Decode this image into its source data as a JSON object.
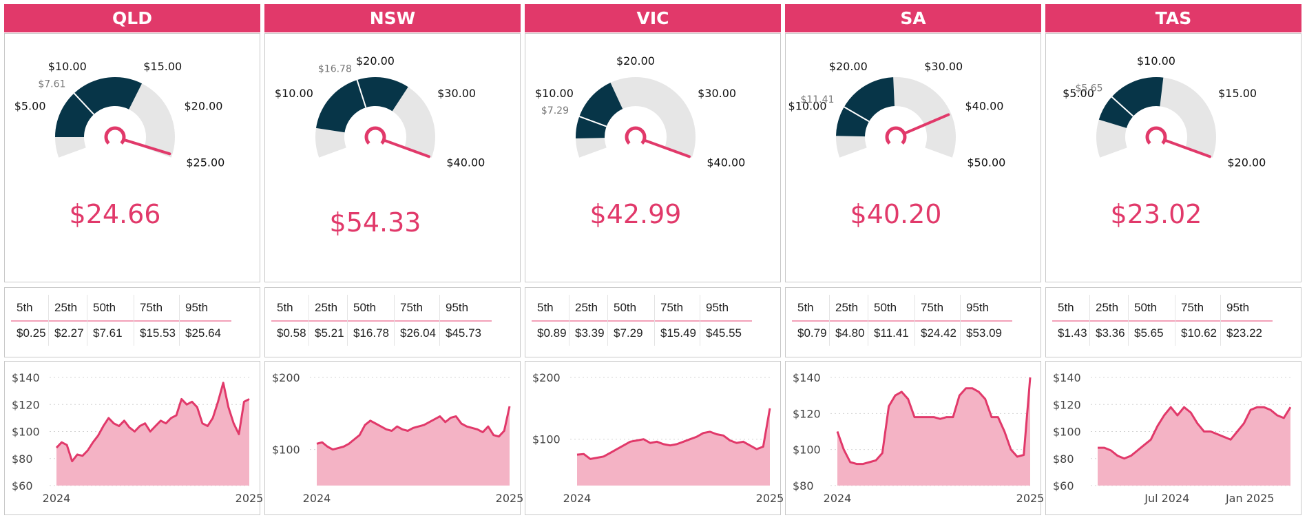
{
  "colors": {
    "accent": "#e1396a",
    "dark": "#073548",
    "track": "#e6e6e6",
    "fill": "#f4b3c5",
    "header_text": "#ffffff"
  },
  "percentile_headers": [
    "5th",
    "25th",
    "50th",
    "75th",
    "95th"
  ],
  "regions": [
    {
      "name": "QLD",
      "value": "$24.66",
      "gauge": {
        "min": 0,
        "max": 25,
        "current": 24.66,
        "median": 7.61,
        "median_label": "$7.61",
        "p25": 2.27,
        "p75": 15.53,
        "ticks": [
          {
            "v": 5,
            "label": "$5.00"
          },
          {
            "v": 10,
            "label": "$10.00"
          },
          {
            "v": 15,
            "label": "$15.00"
          },
          {
            "v": 20,
            "label": "$20.00"
          },
          {
            "v": 25,
            "label": "$25.00"
          }
        ]
      },
      "percentiles": [
        "$0.25",
        "$2.27",
        "$7.61",
        "$15.53",
        "$25.64"
      ],
      "chart_data": {
        "type": "area",
        "title": "QLD",
        "ylim": [
          60,
          140
        ],
        "yticks": [
          "$140",
          "$120",
          "$100",
          "$80",
          "$60"
        ],
        "ytick_values": [
          140,
          120,
          100,
          80,
          60
        ],
        "xticks": [
          "2024",
          "2025"
        ],
        "xtick_pos": [
          0,
          1
        ],
        "values": [
          88,
          92,
          90,
          78,
          83,
          82,
          86,
          92,
          97,
          104,
          110,
          106,
          104,
          108,
          103,
          100,
          104,
          106,
          100,
          104,
          108,
          106,
          110,
          112,
          124,
          120,
          122,
          118,
          106,
          104,
          110,
          122,
          136,
          118,
          106,
          98,
          122,
          124
        ]
      }
    },
    {
      "name": "NSW",
      "value": "$54.33",
      "gauge": {
        "min": 0,
        "max": 40,
        "current": 54.33,
        "median": 16.78,
        "median_label": "$16.78",
        "p25": 5.21,
        "p75": 26.04,
        "ticks": [
          {
            "v": 10,
            "label": "$10.00"
          },
          {
            "v": 20,
            "label": "$20.00"
          },
          {
            "v": 30,
            "label": "$30.00"
          },
          {
            "v": 40,
            "label": "$40.00"
          }
        ]
      },
      "percentiles": [
        "$0.58",
        "$5.21",
        "$16.78",
        "$26.04",
        "$45.73"
      ],
      "chart_data": {
        "type": "area",
        "title": "NSW",
        "ylim": [
          50,
          200
        ],
        "yticks": [
          "$200",
          "$100"
        ],
        "ytick_values": [
          200,
          100
        ],
        "xticks": [
          "2024",
          "2025"
        ],
        "xtick_pos": [
          0,
          1
        ],
        "values": [
          108,
          110,
          104,
          100,
          102,
          104,
          108,
          114,
          120,
          134,
          140,
          136,
          132,
          128,
          126,
          132,
          128,
          126,
          130,
          132,
          134,
          138,
          142,
          146,
          138,
          144,
          146,
          136,
          132,
          130,
          128,
          124,
          132,
          120,
          118,
          126,
          160
        ]
      }
    },
    {
      "name": "VIC",
      "value": "$42.99",
      "gauge": {
        "min": 0,
        "max": 40,
        "current": 42.99,
        "median": 7.29,
        "median_label": "$7.29",
        "p25": 3.39,
        "p75": 15.49,
        "ticks": [
          {
            "v": 10,
            "label": "$10.00"
          },
          {
            "v": 20,
            "label": "$20.00"
          },
          {
            "v": 30,
            "label": "$30.00"
          },
          {
            "v": 40,
            "label": "$40.00"
          }
        ]
      },
      "percentiles": [
        "$0.89",
        "$3.39",
        "$7.29",
        "$15.49",
        "$45.55"
      ],
      "chart_data": {
        "type": "area",
        "title": "VIC",
        "ylim": [
          25,
          200
        ],
        "yticks": [
          "$200",
          "$100"
        ],
        "ytick_values": [
          200,
          100
        ],
        "xticks": [
          "2024",
          "2025"
        ],
        "xtick_pos": [
          0,
          1
        ],
        "values": [
          75,
          76,
          68,
          70,
          72,
          78,
          84,
          90,
          96,
          98,
          100,
          94,
          96,
          92,
          90,
          92,
          96,
          100,
          104,
          110,
          112,
          108,
          106,
          98,
          94,
          96,
          90,
          84,
          88,
          150
        ]
      }
    },
    {
      "name": "SA",
      "value": "$40.20",
      "gauge": {
        "min": 0,
        "max": 50,
        "current": 40.2,
        "median": 11.41,
        "median_label": "$11.41",
        "p25": 4.8,
        "p75": 24.42,
        "ticks": [
          {
            "v": 10,
            "label": "$10.00"
          },
          {
            "v": 20,
            "label": "$20.00"
          },
          {
            "v": 30,
            "label": "$30.00"
          },
          {
            "v": 40,
            "label": "$40.00"
          },
          {
            "v": 50,
            "label": "$50.00"
          }
        ]
      },
      "percentiles": [
        "$0.79",
        "$4.80",
        "$11.41",
        "$24.42",
        "$53.09"
      ],
      "chart_data": {
        "type": "area",
        "title": "SA",
        "ylim": [
          80,
          140
        ],
        "yticks": [
          "$140",
          "$120",
          "$100",
          "$80"
        ],
        "ytick_values": [
          140,
          120,
          100,
          80
        ],
        "xticks": [
          "2024",
          "2025"
        ],
        "xtick_pos": [
          0,
          1
        ],
        "values": [
          110,
          100,
          93,
          92,
          92,
          93,
          94,
          98,
          124,
          130,
          132,
          128,
          118,
          118,
          118,
          118,
          117,
          118,
          118,
          130,
          134,
          134,
          132,
          128,
          118,
          118,
          110,
          100,
          96,
          97,
          140
        ]
      }
    },
    {
      "name": "TAS",
      "value": "$23.02",
      "gauge": {
        "min": 0,
        "max": 20,
        "current": 23.02,
        "median": 5.65,
        "median_label": "$5.65",
        "p25": 3.36,
        "p75": 10.62,
        "ticks": [
          {
            "v": 5,
            "label": "$5.00"
          },
          {
            "v": 10,
            "label": "$10.00"
          },
          {
            "v": 15,
            "label": "$15.00"
          },
          {
            "v": 20,
            "label": "$20.00"
          }
        ]
      },
      "percentiles": [
        "$1.43",
        "$3.36",
        "$5.65",
        "$10.62",
        "$23.22"
      ],
      "chart_data": {
        "type": "area",
        "title": "TAS",
        "ylim": [
          60,
          140
        ],
        "yticks": [
          "$140",
          "$120",
          "$100",
          "$80",
          "$60"
        ],
        "ytick_values": [
          140,
          120,
          100,
          80,
          60
        ],
        "xticks": [
          "Jul 2024",
          "Jan 2025"
        ],
        "xtick_pos": [
          0.36,
          0.79
        ],
        "values": [
          88,
          88,
          86,
          82,
          80,
          82,
          86,
          90,
          94,
          104,
          112,
          118,
          112,
          118,
          114,
          106,
          100,
          100,
          98,
          96,
          94,
          100,
          106,
          116,
          118,
          118,
          116,
          112,
          110,
          118
        ]
      }
    }
  ]
}
